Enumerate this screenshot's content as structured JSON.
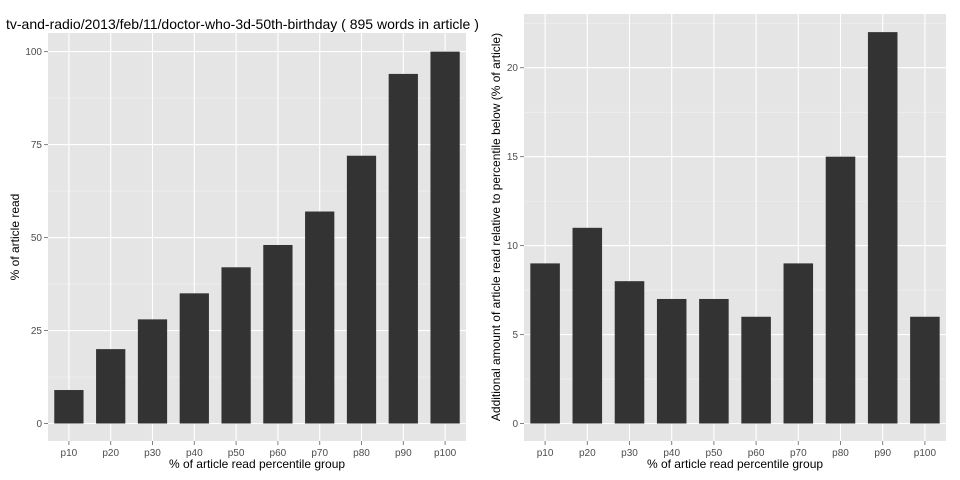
{
  "chart_data": [
    {
      "type": "bar",
      "title": "tv-and-radio/2013/feb/11/doctor-who-3d-50th-birthday ( 895 words in article )",
      "xlabel": "% of article read percentile group",
      "ylabel": "% of article read",
      "categories": [
        "p10",
        "p20",
        "p30",
        "p40",
        "p50",
        "p60",
        "p70",
        "p80",
        "p90",
        "p100"
      ],
      "values": [
        9,
        20,
        28,
        35,
        42,
        48,
        57,
        72,
        94,
        100
      ],
      "ylim": [
        0,
        104
      ],
      "yticks": [
        0,
        25,
        50,
        75,
        100
      ],
      "grid": true
    },
    {
      "type": "bar",
      "title": "",
      "xlabel": "% of article read percentile group",
      "ylabel": "Additional amount of article read relative to percentile below (% of article)",
      "categories": [
        "p10",
        "p20",
        "p30",
        "p40",
        "p50",
        "p60",
        "p70",
        "p80",
        "p90",
        "p100"
      ],
      "values": [
        9,
        11,
        8,
        7,
        7,
        6,
        9,
        15,
        22,
        6
      ],
      "ylim": [
        0,
        23
      ],
      "yticks": [
        0,
        5,
        10,
        15,
        20
      ],
      "grid": true
    }
  ]
}
